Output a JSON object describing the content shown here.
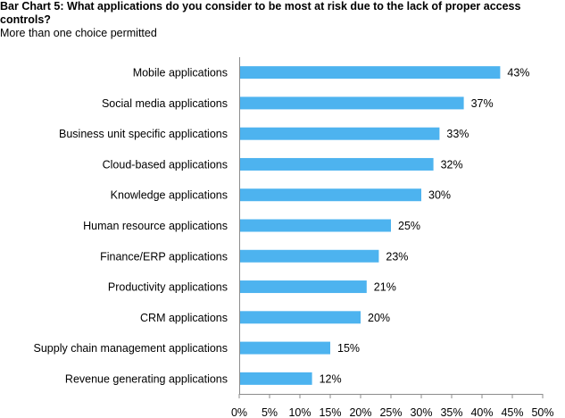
{
  "chart_data": {
    "type": "bar",
    "orientation": "horizontal",
    "title": "Bar Chart 5: What applications do you consider to be most at risk due to the lack of proper access controls?",
    "subtitle": "More than one choice permitted",
    "categories": [
      "Mobile applications",
      "Social media applications",
      "Business unit specific applications",
      "Cloud-based applications",
      "Knowledge applications",
      "Human resource applications",
      "Finance/ERP applications",
      "Productivity applications",
      "CRM applications",
      "Supply chain management applications",
      "Revenue generating applications"
    ],
    "values": [
      43,
      37,
      33,
      32,
      30,
      25,
      23,
      21,
      20,
      15,
      12
    ],
    "value_labels": [
      "43%",
      "37%",
      "33%",
      "32%",
      "30%",
      "25%",
      "23%",
      "21%",
      "20%",
      "15%",
      "12%"
    ],
    "xlim": [
      0,
      50
    ],
    "xticks": [
      0,
      5,
      10,
      15,
      20,
      25,
      30,
      35,
      40,
      45,
      50
    ],
    "xtick_labels": [
      "0%",
      "5%",
      "10%",
      "15%",
      "20%",
      "25%",
      "30%",
      "35%",
      "40%",
      "45%",
      "50%"
    ],
    "bar_color": "#4db3ef",
    "grid": false,
    "legend": "none"
  }
}
